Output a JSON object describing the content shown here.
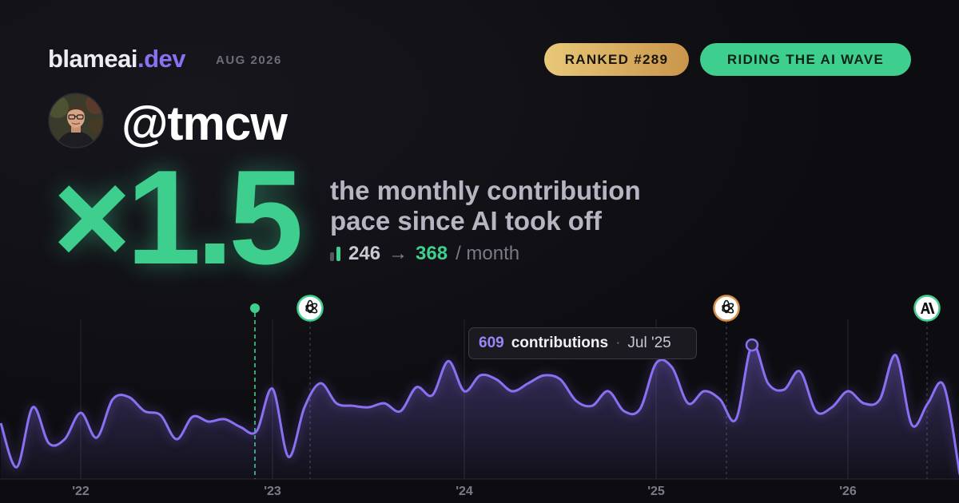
{
  "header": {
    "brand": "blameai",
    "brand_tld": ".dev",
    "date": "AUG 2026",
    "rank_badge": "RANKED #289",
    "status_badge": "RIDING THE AI WAVE"
  },
  "profile": {
    "handle": "@tmcw"
  },
  "headline": {
    "multiplier": "×1.5",
    "line1": "the monthly contribution",
    "line2": "pace since AI took off",
    "before": "246",
    "arrow": "→",
    "after": "368",
    "unit": "/ month"
  },
  "tooltip": {
    "unit": "contributions",
    "separator": "·",
    "date": "Jul '25"
  },
  "chart_data": {
    "type": "area",
    "categories": [
      null,
      null,
      null,
      null,
      null,
      "'22",
      null,
      null,
      null,
      null,
      null,
      null,
      null,
      null,
      null,
      null,
      null,
      "'23",
      null,
      null,
      null,
      null,
      null,
      null,
      null,
      null,
      null,
      null,
      null,
      "'24",
      null,
      null,
      null,
      null,
      null,
      null,
      null,
      null,
      null,
      null,
      null,
      "'25",
      null,
      null,
      null,
      null,
      null,
      null,
      null,
      null,
      null,
      null,
      null,
      "'26",
      null,
      null,
      null,
      null,
      null,
      null,
      null
    ],
    "values": [
      254,
      54,
      326,
      163,
      181,
      301,
      188,
      362,
      373,
      308,
      290,
      181,
      283,
      261,
      272,
      236,
      217,
      410,
      101,
      326,
      435,
      344,
      333,
      326,
      344,
      308,
      417,
      381,
      536,
      399,
      471,
      453,
      399,
      435,
      471,
      453,
      355,
      333,
      399,
      308,
      319,
      526,
      507,
      344,
      399,
      362,
      272,
      609,
      435,
      406,
      489,
      308,
      326,
      399,
      344,
      362,
      562,
      246,
      344,
      424,
      20
    ],
    "color": "#8b70f2",
    "ylim": [
      0,
      700
    ]
  }
}
